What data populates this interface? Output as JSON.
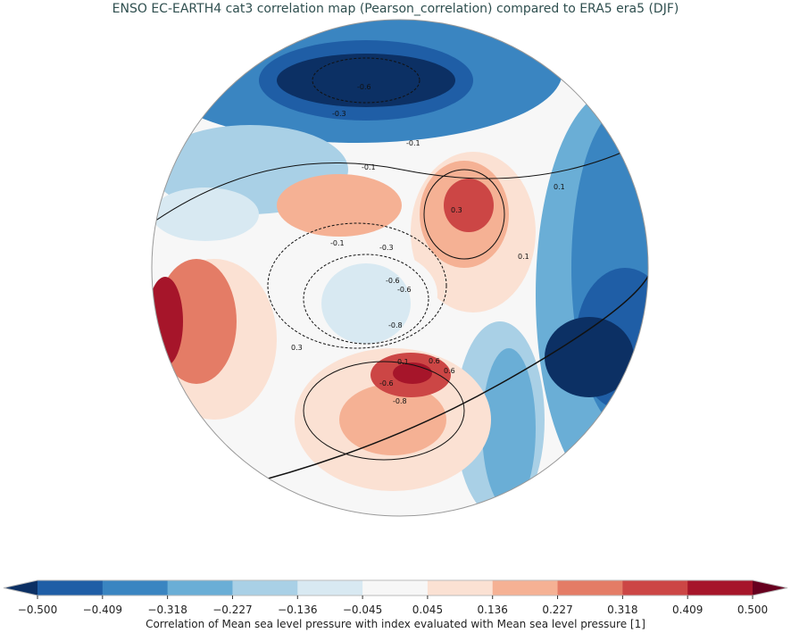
{
  "title": "ENSO EC-EARTH4 cat3 correlation map (Pearson_correlation) compared to ERA5 era5 (DJF)",
  "colorbar": {
    "label": "Correlation of Mean sea level pressure with index evaluated with Mean sea level pressure [1]",
    "ticks": [
      "−0.500",
      "−0.409",
      "−0.318",
      "−0.227",
      "−0.136",
      "−0.045",
      "0.045",
      "0.136",
      "0.227",
      "0.318",
      "0.409",
      "0.500"
    ],
    "colors": [
      "#1f5ea6",
      "#3a85c1",
      "#6aaed6",
      "#a9d0e6",
      "#d8e9f2",
      "#f7f7f7",
      "#fbe1d3",
      "#f5b194",
      "#e47c66",
      "#cc4645",
      "#a6152a"
    ],
    "under_color": "#0c3064",
    "over_color": "#67001f"
  },
  "contour_labels": [
    "-0.6",
    "-0.3",
    "-0.1",
    "-0.1",
    "0.1",
    "-0.3",
    "-0.6",
    "-0.6",
    "-0.8",
    "0.3",
    "0.6",
    "0.6",
    "-0.6",
    "-0.8",
    "0.1",
    "0.3",
    "0.1",
    "-0.1"
  ]
}
